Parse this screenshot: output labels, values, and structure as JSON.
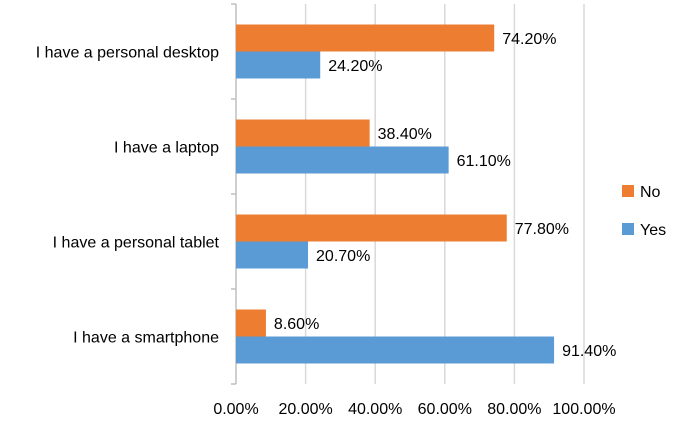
{
  "chart_data": {
    "type": "bar",
    "orientation": "horizontal",
    "categories": [
      "I have a personal desktop",
      "I have a laptop",
      "I have a personal tablet",
      "I have a smartphone"
    ],
    "series": [
      {
        "name": "No",
        "color": "#ed7d31",
        "values": [
          74.2,
          38.4,
          77.8,
          8.6
        ],
        "labels": [
          "74.20%",
          "38.40%",
          "77.80%",
          "8.60%"
        ]
      },
      {
        "name": "Yes",
        "color": "#5b9bd5",
        "values": [
          24.2,
          61.1,
          20.7,
          91.4
        ],
        "labels": [
          "24.20%",
          "61.10%",
          "20.70%",
          "91.40%"
        ]
      }
    ],
    "xlim": [
      0,
      100
    ],
    "x_ticks": [
      0,
      20,
      40,
      60,
      80,
      100
    ],
    "x_tick_labels": [
      "0.00%",
      "20.00%",
      "40.00%",
      "60.00%",
      "80.00%",
      "100.00%"
    ],
    "grid": true,
    "legend": {
      "position": "right",
      "entries": [
        "No",
        "Yes"
      ]
    },
    "axis_color": "#bfbfbf",
    "grid_color": "#d9d9d9"
  }
}
